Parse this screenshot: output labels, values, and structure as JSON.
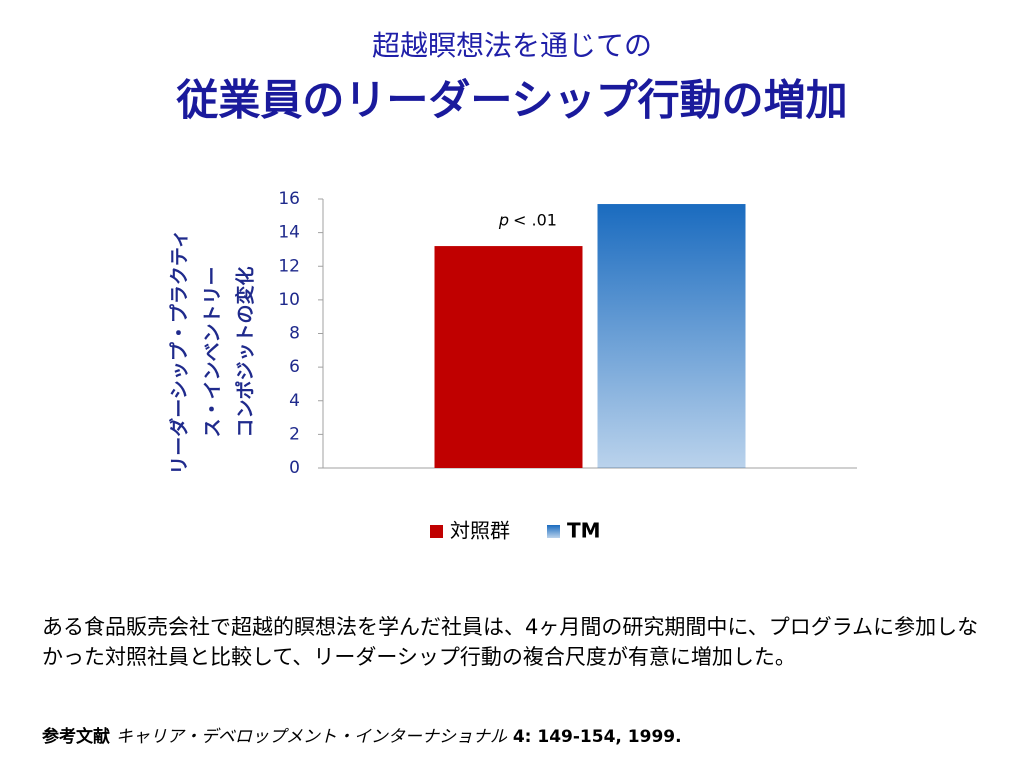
{
  "chart_data": {
    "type": "bar",
    "title": [
      "超越瞑想法を通じての",
      "従業員のリーダーシップ行動の増加"
    ],
    "ylabel": [
      "リーダーシップ・プラクティ",
      "ス・インベントリー",
      "コンポジットの変化"
    ],
    "categories": [
      null
    ],
    "series": [
      {
        "name": "対照群",
        "color": "#c00000",
        "values": [
          13.2
        ]
      },
      {
        "name": "TM",
        "color": "#1a6bbf",
        "values": [
          15.7
        ]
      }
    ],
    "annotation": [
      "p",
      "< .01"
    ],
    "ylim": [
      0,
      16
    ],
    "yticks": [
      0,
      2,
      4,
      6,
      8,
      10,
      12,
      14,
      16
    ],
    "legend": "bottom",
    "grid": false
  },
  "caption": "ある食品販売会社で超越的瞑想法を学んだ社員は、4ヶ月間の研究期間中に、プログラムに参加しなかった対照社員と比較して、リーダーシップ行動の複合尺度が有意に増加した。",
  "reference": {
    "label": "参考文献",
    "source": "キャリア・デベロップメント・インターナショナル",
    "citation": "4: 149-154, 1999."
  }
}
